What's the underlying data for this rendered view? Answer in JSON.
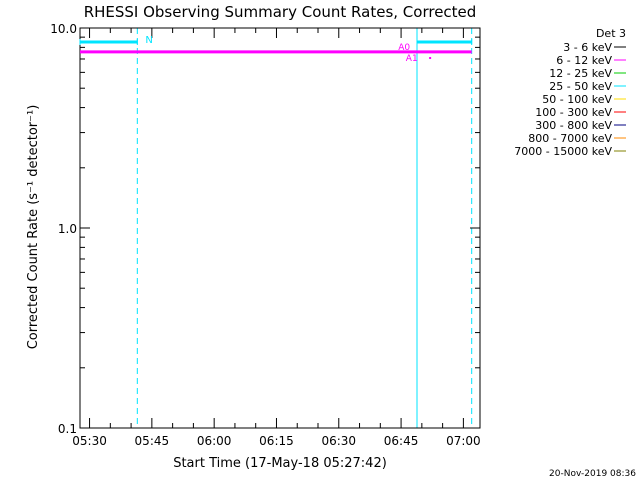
{
  "chart_data": {
    "type": "line",
    "title": "RHESSI Observing Summary Count Rates, Corrected",
    "xlabel": "Start Time (17-May-18 05:27:42)",
    "ylabel": "Corrected Count Rate (s⁻¹ detector⁻¹)",
    "y_scale": "log",
    "ylim": [
      0.1,
      10.0
    ],
    "xlim": [
      "05:27:42",
      "07:04:00"
    ],
    "x_ticks": [
      "05:30",
      "05:45",
      "06:00",
      "06:15",
      "06:30",
      "06:45",
      "07:00"
    ],
    "y_ticks": [
      "0.1",
      "1.0",
      "10.0"
    ],
    "legend_title": "Det 3",
    "legend_placement": "right, outside plot",
    "series": [
      {
        "name": "3 - 6 keV",
        "color": "#000000",
        "points": []
      },
      {
        "name": "6 - 12 keV",
        "color": "#ff00ff",
        "points": [
          [
            "05:27:42",
            7.6
          ],
          [
            "07:02:00",
            7.6
          ]
        ]
      },
      {
        "name": "12 - 25 keV",
        "color": "#00cc00",
        "points": []
      },
      {
        "name": "25 - 50 keV",
        "color": "#00e5ff",
        "points": []
      },
      {
        "name": "50 - 100 keV",
        "color": "#ffdd00",
        "points": []
      },
      {
        "name": "100 - 300 keV",
        "color": "#ff0000",
        "points": []
      },
      {
        "name": "300 - 800 keV",
        "color": "#000080",
        "points": []
      },
      {
        "name": "800 - 7000 keV",
        "color": "#ff8800",
        "points": []
      },
      {
        "name": "7000 - 15000 keV",
        "color": "#808000",
        "points": []
      }
    ],
    "night_bars": [
      {
        "start": "05:27:42",
        "end": "05:41:30",
        "label": "N"
      },
      {
        "start": "06:48:50",
        "end": "07:02:00",
        "label": ""
      }
    ],
    "night_edges": [
      {
        "time": "05:27:42",
        "style": "solid"
      },
      {
        "time": "05:41:30",
        "style": "dashed"
      },
      {
        "time": "06:48:50",
        "style": "solid"
      },
      {
        "time": "07:02:00",
        "style": "dashed"
      }
    ],
    "attenuator_marks": [
      {
        "time": "06:47:10",
        "label": "A0"
      },
      {
        "time": "06:49:00",
        "label": "A1"
      }
    ],
    "footer_date": "20-Nov-2019 08:36"
  }
}
